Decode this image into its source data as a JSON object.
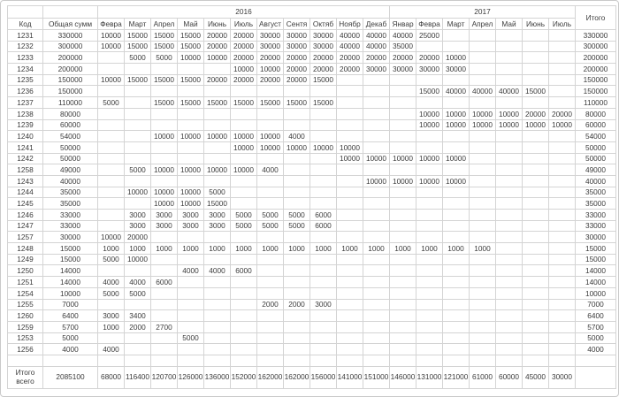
{
  "colors": {
    "background": "#ffffff",
    "grid_line": "#d4d4d4",
    "text": "#3c3c3c"
  },
  "table": {
    "code_label": "Код",
    "total_label": "Общая сумм",
    "itogo_label": "Итого",
    "year_groups": [
      {
        "label": "2016",
        "colspan": 11
      },
      {
        "label": "2017",
        "colspan": 7
      }
    ],
    "month_columns": [
      "Февра",
      "Март",
      "Апрел",
      "Май",
      "Июнь",
      "Июль",
      "Август",
      "Сентя",
      "Октяб",
      "Ноябр",
      "Декаб",
      "Январ",
      "Февра",
      "Март",
      "Апрел",
      "Май",
      "Июнь",
      "Июль"
    ],
    "rows": [
      {
        "code": "1231",
        "total": "330000",
        "months": [
          "10000",
          "15000",
          "15000",
          "15000",
          "20000",
          "20000",
          "30000",
          "30000",
          "30000",
          "40000",
          "40000",
          "40000",
          "25000",
          "",
          "",
          "",
          "",
          ""
        ],
        "itogo": "330000"
      },
      {
        "code": "1232",
        "total": "300000",
        "months": [
          "10000",
          "15000",
          "15000",
          "15000",
          "20000",
          "20000",
          "30000",
          "30000",
          "30000",
          "40000",
          "40000",
          "35000",
          "",
          "",
          "",
          "",
          "",
          ""
        ],
        "itogo": "300000"
      },
      {
        "code": "1233",
        "total": "200000",
        "months": [
          "",
          "5000",
          "5000",
          "10000",
          "10000",
          "20000",
          "20000",
          "20000",
          "20000",
          "20000",
          "20000",
          "20000",
          "20000",
          "10000",
          "",
          "",
          "",
          ""
        ],
        "itogo": "200000"
      },
      {
        "code": "1234",
        "total": "200000",
        "months": [
          "",
          "",
          "",
          "",
          "",
          "10000",
          "10000",
          "20000",
          "20000",
          "20000",
          "30000",
          "30000",
          "30000",
          "30000",
          "",
          "",
          "",
          ""
        ],
        "itogo": "200000"
      },
      {
        "code": "1235",
        "total": "150000",
        "months": [
          "10000",
          "15000",
          "15000",
          "15000",
          "20000",
          "20000",
          "20000",
          "20000",
          "15000",
          "",
          "",
          "",
          "",
          "",
          "",
          "",
          "",
          ""
        ],
        "itogo": "150000"
      },
      {
        "code": "1236",
        "total": "150000",
        "months": [
          "",
          "",
          "",
          "",
          "",
          "",
          "",
          "",
          "",
          "",
          "",
          "",
          "15000",
          "40000",
          "40000",
          "40000",
          "15000",
          ""
        ],
        "itogo": "150000"
      },
      {
        "code": "1237",
        "total": "110000",
        "months": [
          "5000",
          "",
          "15000",
          "15000",
          "15000",
          "15000",
          "15000",
          "15000",
          "15000",
          "",
          "",
          "",
          "",
          "",
          "",
          "",
          "",
          ""
        ],
        "itogo": "110000"
      },
      {
        "code": "1238",
        "total": "80000",
        "months": [
          "",
          "",
          "",
          "",
          "",
          "",
          "",
          "",
          "",
          "",
          "",
          "",
          "10000",
          "10000",
          "10000",
          "10000",
          "20000",
          "20000"
        ],
        "itogo": "80000"
      },
      {
        "code": "1239",
        "total": "60000",
        "months": [
          "",
          "",
          "",
          "",
          "",
          "",
          "",
          "",
          "",
          "",
          "",
          "",
          "10000",
          "10000",
          "10000",
          "10000",
          "10000",
          "10000"
        ],
        "itogo": "60000"
      },
      {
        "code": "1240",
        "total": "54000",
        "months": [
          "",
          "",
          "10000",
          "10000",
          "10000",
          "10000",
          "10000",
          "4000",
          "",
          "",
          "",
          "",
          "",
          "",
          "",
          "",
          "",
          ""
        ],
        "itogo": "54000"
      },
      {
        "code": "1241",
        "total": "50000",
        "months": [
          "",
          "",
          "",
          "",
          "",
          "10000",
          "10000",
          "10000",
          "10000",
          "10000",
          "",
          "",
          "",
          "",
          "",
          "",
          "",
          ""
        ],
        "itogo": "50000"
      },
      {
        "code": "1242",
        "total": "50000",
        "months": [
          "",
          "",
          "",
          "",
          "",
          "",
          "",
          "",
          "",
          "10000",
          "10000",
          "10000",
          "10000",
          "10000",
          "",
          "",
          "",
          ""
        ],
        "itogo": "50000"
      },
      {
        "code": "1258",
        "total": "49000",
        "months": [
          "",
          "5000",
          "10000",
          "10000",
          "10000",
          "10000",
          "4000",
          "",
          "",
          "",
          "",
          "",
          "",
          "",
          "",
          "",
          "",
          ""
        ],
        "itogo": "49000"
      },
      {
        "code": "1243",
        "total": "40000",
        "months": [
          "",
          "",
          "",
          "",
          "",
          "",
          "",
          "",
          "",
          "",
          "10000",
          "10000",
          "10000",
          "10000",
          "",
          "",
          "",
          ""
        ],
        "itogo": "40000"
      },
      {
        "code": "1244",
        "total": "35000",
        "months": [
          "",
          "10000",
          "10000",
          "10000",
          "5000",
          "",
          "",
          "",
          "",
          "",
          "",
          "",
          "",
          "",
          "",
          "",
          "",
          ""
        ],
        "itogo": "35000"
      },
      {
        "code": "1245",
        "total": "35000",
        "months": [
          "",
          "",
          "10000",
          "10000",
          "15000",
          "",
          "",
          "",
          "",
          "",
          "",
          "",
          "",
          "",
          "",
          "",
          "",
          ""
        ],
        "itogo": "35000"
      },
      {
        "code": "1246",
        "total": "33000",
        "months": [
          "",
          "3000",
          "3000",
          "3000",
          "3000",
          "5000",
          "5000",
          "5000",
          "6000",
          "",
          "",
          "",
          "",
          "",
          "",
          "",
          "",
          ""
        ],
        "itogo": "33000"
      },
      {
        "code": "1247",
        "total": "33000",
        "months": [
          "",
          "3000",
          "3000",
          "3000",
          "3000",
          "5000",
          "5000",
          "5000",
          "6000",
          "",
          "",
          "",
          "",
          "",
          "",
          "",
          "",
          ""
        ],
        "itogo": "33000"
      },
      {
        "code": "1257",
        "total": "30000",
        "months": [
          "10000",
          "20000",
          "",
          "",
          "",
          "",
          "",
          "",
          "",
          "",
          "",
          "",
          "",
          "",
          "",
          "",
          "",
          ""
        ],
        "itogo": "30000"
      },
      {
        "code": "1248",
        "total": "15000",
        "months": [
          "1000",
          "1000",
          "1000",
          "1000",
          "1000",
          "1000",
          "1000",
          "1000",
          "1000",
          "1000",
          "1000",
          "1000",
          "1000",
          "1000",
          "1000",
          "",
          "",
          ""
        ],
        "itogo": "15000"
      },
      {
        "code": "1249",
        "total": "15000",
        "months": [
          "5000",
          "10000",
          "",
          "",
          "",
          "",
          "",
          "",
          "",
          "",
          "",
          "",
          "",
          "",
          "",
          "",
          "",
          ""
        ],
        "itogo": "15000"
      },
      {
        "code": "1250",
        "total": "14000",
        "months": [
          "",
          "",
          "",
          "4000",
          "4000",
          "6000",
          "",
          "",
          "",
          "",
          "",
          "",
          "",
          "",
          "",
          "",
          "",
          ""
        ],
        "itogo": "14000"
      },
      {
        "code": "1251",
        "total": "14000",
        "months": [
          "4000",
          "4000",
          "6000",
          "",
          "",
          "",
          "",
          "",
          "",
          "",
          "",
          "",
          "",
          "",
          "",
          "",
          "",
          ""
        ],
        "itogo": "14000"
      },
      {
        "code": "1254",
        "total": "10000",
        "months": [
          "5000",
          "5000",
          "",
          "",
          "",
          "",
          "",
          "",
          "",
          "",
          "",
          "",
          "",
          "",
          "",
          "",
          "",
          ""
        ],
        "itogo": "10000"
      },
      {
        "code": "1255",
        "total": "7000",
        "months": [
          "",
          "",
          "",
          "",
          "",
          "",
          "2000",
          "2000",
          "3000",
          "",
          "",
          "",
          "",
          "",
          "",
          "",
          "",
          ""
        ],
        "itogo": "7000"
      },
      {
        "code": "1260",
        "total": "6400",
        "months": [
          "3000",
          "3400",
          "",
          "",
          "",
          "",
          "",
          "",
          "",
          "",
          "",
          "",
          "",
          "",
          "",
          "",
          "",
          ""
        ],
        "itogo": "6400"
      },
      {
        "code": "1259",
        "total": "5700",
        "months": [
          "1000",
          "2000",
          "2700",
          "",
          "",
          "",
          "",
          "",
          "",
          "",
          "",
          "",
          "",
          "",
          "",
          "",
          "",
          ""
        ],
        "itogo": "5700"
      },
      {
        "code": "1253",
        "total": "5000",
        "months": [
          "",
          "",
          "",
          "5000",
          "",
          "",
          "",
          "",
          "",
          "",
          "",
          "",
          "",
          "",
          "",
          "",
          "",
          ""
        ],
        "itogo": "5000"
      },
      {
        "code": "1256",
        "total": "4000",
        "months": [
          "4000",
          "",
          "",
          "",
          "",
          "",
          "",
          "",
          "",
          "",
          "",
          "",
          "",
          "",
          "",
          "",
          "",
          ""
        ],
        "itogo": "4000"
      }
    ],
    "footer": {
      "label": "Итого всего",
      "total": "2085100",
      "months": [
        "68000",
        "116400",
        "120700",
        "126000",
        "136000",
        "152000",
        "162000",
        "162000",
        "156000",
        "141000",
        "151000",
        "146000",
        "131000",
        "121000",
        "61000",
        "60000",
        "45000",
        "30000"
      ],
      "itogo": ""
    }
  }
}
